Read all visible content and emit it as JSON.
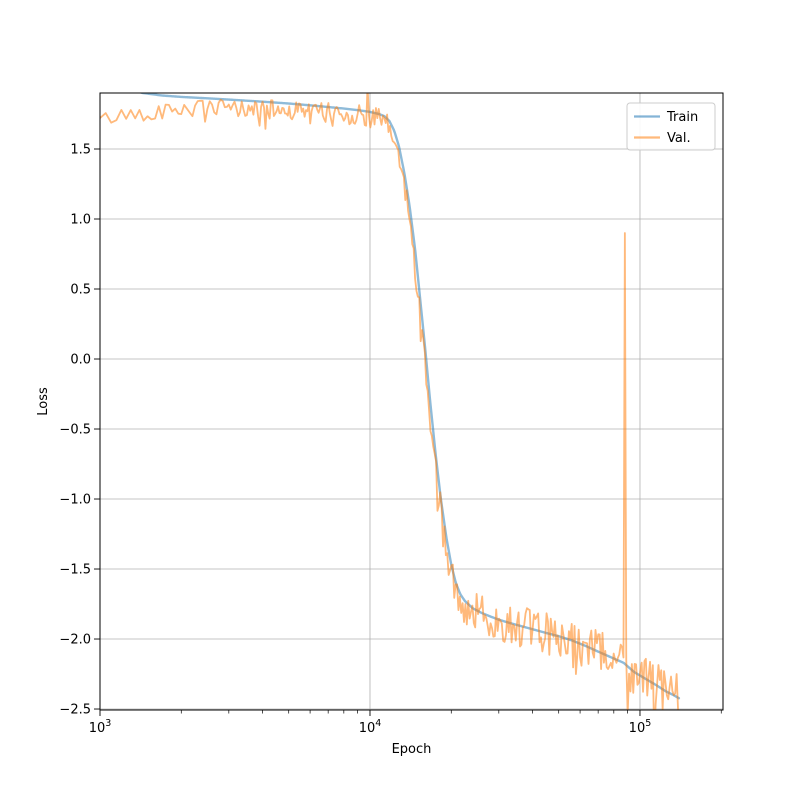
{
  "chart_data": {
    "type": "line",
    "title": "",
    "xlabel": "Epoch",
    "ylabel": "Loss",
    "x_scale": "log",
    "xlim": [
      1000,
      203000
    ],
    "ylim": [
      -2.507,
      1.9
    ],
    "grid": true,
    "legend": {
      "position": "upper right",
      "entries": [
        {
          "label": "Train",
          "color": "#1f77b4"
        },
        {
          "label": "Val.",
          "color": "#ff7f0e"
        }
      ]
    },
    "x_ticks": [
      {
        "value": 1000,
        "base": "10",
        "exp": "3"
      },
      {
        "value": 10000,
        "base": "10",
        "exp": "4"
      },
      {
        "value": 100000,
        "base": "10",
        "exp": "5"
      }
    ],
    "y_ticks": [
      {
        "value": 1.5,
        "label": "1.5"
      },
      {
        "value": 1.0,
        "label": "1.0"
      },
      {
        "value": 0.5,
        "label": "0.5"
      },
      {
        "value": 0.0,
        "label": "0.0"
      },
      {
        "value": -0.5,
        "label": "−0.5"
      },
      {
        "value": -1.0,
        "label": "−1.0"
      },
      {
        "value": -1.5,
        "label": "−1.5"
      },
      {
        "value": -2.0,
        "label": "−2.0"
      },
      {
        "value": -2.5,
        "label": "−2.5"
      }
    ],
    "style": {
      "grid_color": "#b0b0b0",
      "spine_color": "#000000",
      "legend_border_color": "#cccccc",
      "background": "#ffffff"
    },
    "series": [
      {
        "name": "Train",
        "color": "#1f77b4",
        "opacity": 0.5,
        "line_width": 2.4,
        "anchors": [
          [
            1000,
            1.98
          ],
          [
            1200,
            1.945
          ],
          [
            1440,
            1.9
          ],
          [
            1700,
            1.882
          ],
          [
            2000,
            1.872
          ],
          [
            2500,
            1.862
          ],
          [
            3000,
            1.853
          ],
          [
            4000,
            1.838
          ],
          [
            5000,
            1.825
          ],
          [
            6000,
            1.812
          ],
          [
            7000,
            1.8
          ],
          [
            8000,
            1.789
          ],
          [
            9000,
            1.778
          ],
          [
            10000,
            1.765
          ],
          [
            10800,
            1.75
          ],
          [
            11300,
            1.735
          ],
          [
            11800,
            1.7
          ],
          [
            12300,
            1.63
          ],
          [
            12800,
            1.52
          ],
          [
            13400,
            1.33
          ],
          [
            14000,
            1.1
          ],
          [
            14700,
            0.78
          ],
          [
            15300,
            0.45
          ],
          [
            16000,
            0.08
          ],
          [
            16700,
            -0.3
          ],
          [
            17500,
            -0.68
          ],
          [
            18300,
            -1.0
          ],
          [
            19200,
            -1.28
          ],
          [
            20000,
            -1.47
          ],
          [
            20800,
            -1.6
          ],
          [
            21600,
            -1.68
          ],
          [
            22500,
            -1.73
          ],
          [
            24000,
            -1.78
          ],
          [
            26000,
            -1.815
          ],
          [
            28000,
            -1.84
          ],
          [
            30000,
            -1.862
          ],
          [
            33000,
            -1.886
          ],
          [
            36000,
            -1.906
          ],
          [
            40000,
            -1.93
          ],
          [
            45000,
            -1.957
          ],
          [
            50000,
            -1.98
          ],
          [
            56000,
            -2.01
          ],
          [
            63000,
            -2.05
          ],
          [
            70000,
            -2.09
          ],
          [
            78000,
            -2.13
          ],
          [
            87000,
            -2.17
          ],
          [
            95000,
            -2.235
          ],
          [
            105000,
            -2.285
          ],
          [
            115000,
            -2.33
          ],
          [
            125000,
            -2.375
          ],
          [
            133000,
            -2.4
          ],
          [
            140000,
            -2.425
          ]
        ]
      },
      {
        "name": "Val.",
        "color": "#ff7f0e",
        "opacity": 0.55,
        "line_width": 1.8,
        "anchors": [
          [
            1000,
            1.71
          ],
          [
            1300,
            1.75
          ],
          [
            1600,
            1.77
          ],
          [
            2000,
            1.785
          ],
          [
            2500,
            1.79
          ],
          [
            3000,
            1.788
          ],
          [
            4000,
            1.783
          ],
          [
            5000,
            1.777
          ],
          [
            6000,
            1.77
          ],
          [
            7000,
            1.762
          ],
          [
            8000,
            1.754
          ],
          [
            9000,
            1.745
          ],
          [
            10000,
            1.73
          ],
          [
            10800,
            1.715
          ],
          [
            11300,
            1.69
          ],
          [
            11800,
            1.645
          ],
          [
            12300,
            1.56
          ],
          [
            12800,
            1.44
          ],
          [
            13400,
            1.24
          ],
          [
            14000,
            1.0
          ],
          [
            14700,
            0.66
          ],
          [
            15300,
            0.33
          ],
          [
            16000,
            -0.06
          ],
          [
            16700,
            -0.44
          ],
          [
            17500,
            -0.8
          ],
          [
            18300,
            -1.1
          ],
          [
            19200,
            -1.36
          ],
          [
            20000,
            -1.54
          ],
          [
            20800,
            -1.66
          ],
          [
            21600,
            -1.73
          ],
          [
            22500,
            -1.77
          ],
          [
            24000,
            -1.8
          ],
          [
            26000,
            -1.825
          ],
          [
            28000,
            -1.85
          ],
          [
            30000,
            -1.868
          ],
          [
            33000,
            -1.89
          ],
          [
            36000,
            -1.91
          ],
          [
            40000,
            -1.935
          ],
          [
            45000,
            -1.96
          ],
          [
            50000,
            -1.985
          ],
          [
            56000,
            -2.015
          ],
          [
            63000,
            -2.055
          ],
          [
            70000,
            -2.095
          ],
          [
            78000,
            -2.135
          ],
          [
            87000,
            -2.175
          ],
          [
            95000,
            -2.24
          ],
          [
            105000,
            -2.29
          ],
          [
            115000,
            -2.335
          ],
          [
            125000,
            -2.38
          ],
          [
            133000,
            -2.405
          ],
          [
            140000,
            -2.43
          ]
        ],
        "noise": {
          "seed": 42,
          "amplitude_anchors": [
            [
              1000,
              0.055
            ],
            [
              9000,
              0.075
            ],
            [
              12000,
              0.085
            ],
            [
              22000,
              0.13
            ],
            [
              40000,
              0.15
            ],
            [
              80000,
              0.16
            ],
            [
              140000,
              0.17
            ]
          ],
          "outlier_prob": 0.07,
          "outlier_scale": 2.0
        },
        "spikes": [
          {
            "epoch": 9800,
            "value": 1.95
          },
          {
            "epoch": 87500,
            "value": 0.9
          }
        ]
      }
    ]
  }
}
